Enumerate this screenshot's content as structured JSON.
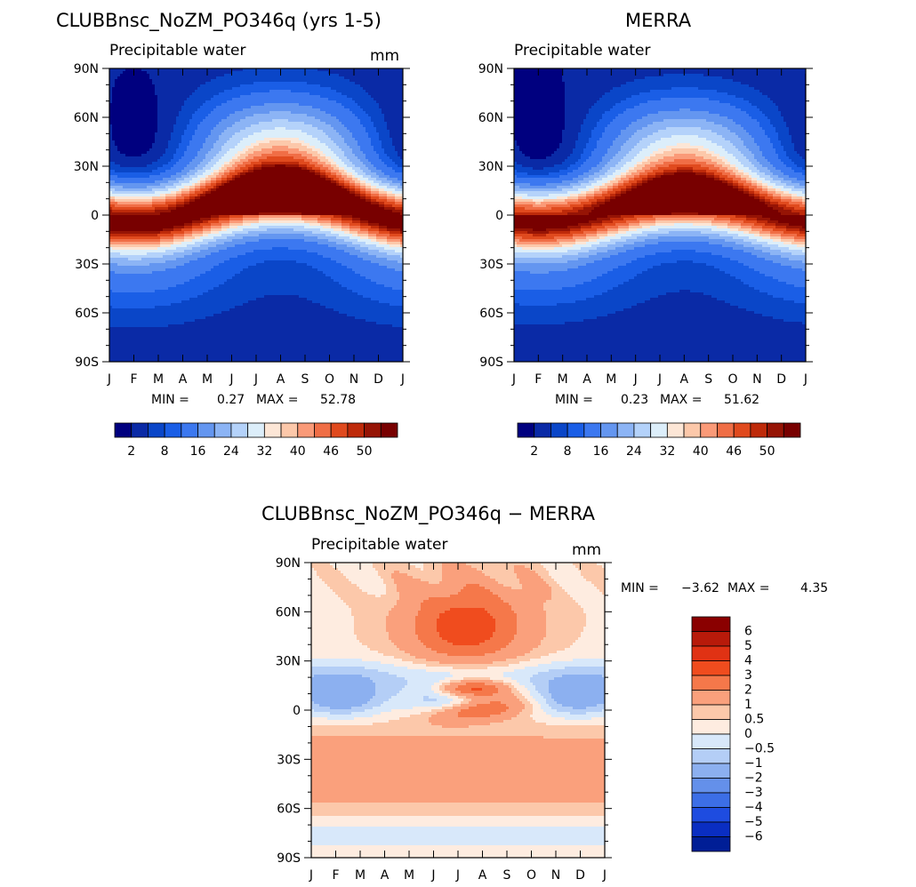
{
  "chart_data": [
    {
      "type": "contour",
      "title": "CLUBBnsc_NoZM_PO346q (yrs 1-5)",
      "subtitle": "Precipitable water",
      "units": "mm",
      "months": [
        "J",
        "F",
        "M",
        "A",
        "M",
        "J",
        "J",
        "A",
        "S",
        "O",
        "N",
        "D",
        "J"
      ],
      "lat_labels": [
        "90N",
        "60N",
        "30N",
        "0",
        "30S",
        "60S",
        "90S"
      ],
      "stats": {
        "min_label": "MIN =",
        "min": "0.27",
        "max_label": "MAX =",
        "max": "52.78"
      },
      "colorbar_labels": [
        "2",
        "8",
        "16",
        "24",
        "32",
        "40",
        "46",
        "50"
      ],
      "field": "clim_model"
    },
    {
      "type": "contour",
      "title": "MERRA",
      "subtitle": "Precipitable water",
      "units": "mm",
      "months": [
        "J",
        "F",
        "M",
        "A",
        "M",
        "J",
        "J",
        "A",
        "S",
        "O",
        "N",
        "D",
        "J"
      ],
      "lat_labels": [
        "90N",
        "60N",
        "30N",
        "0",
        "30S",
        "60S",
        "90S"
      ],
      "stats": {
        "min_label": "MIN =",
        "min": "0.23",
        "max_label": "MAX =",
        "max": "51.62"
      },
      "colorbar_labels": [
        "2",
        "8",
        "16",
        "24",
        "32",
        "40",
        "46",
        "50"
      ],
      "field": "clim_obs"
    },
    {
      "type": "contour",
      "title": "CLUBBnsc_NoZM_PO346q − MERRA",
      "subtitle": "Precipitable water",
      "units": "mm",
      "months": [
        "J",
        "F",
        "M",
        "A",
        "M",
        "J",
        "J",
        "A",
        "S",
        "O",
        "N",
        "D",
        "J"
      ],
      "lat_labels": [
        "90N",
        "60N",
        "30N",
        "0",
        "30S",
        "60S",
        "90S"
      ],
      "stats": {
        "min_label": "MIN =",
        "min": "−3.62",
        "max_label": "MAX =",
        "max": "4.35"
      },
      "colorbar_labels": [
        "6",
        "5",
        "4",
        "3",
        "2",
        "1",
        "0.5",
        "0",
        "−0.5",
        "−1",
        "−2",
        "−3",
        "−4",
        "−5",
        "−6"
      ],
      "field": "diff"
    }
  ],
  "palettes": {
    "clim": [
      "#00007f",
      "#0a2aa6",
      "#0a46c8",
      "#1a5ee6",
      "#3c78f0",
      "#6496f0",
      "#8cb4f5",
      "#b4d2fa",
      "#dceefa",
      "#fce6d6",
      "#fcc8aa",
      "#fa9a78",
      "#f06e46",
      "#e04a1e",
      "#be2a0a",
      "#961405",
      "#780000"
    ],
    "diff": [
      "#8a0000",
      "#b81a0a",
      "#e03214",
      "#f04c1e",
      "#f5784a",
      "#faa07c",
      "#fcc8aa",
      "#feece0",
      "#d8e8fa",
      "#b4cef6",
      "#8cb0f0",
      "#6490ea",
      "#3c6ee6",
      "#1e4ce0",
      "#0a2ec2",
      "#001e96"
    ]
  }
}
